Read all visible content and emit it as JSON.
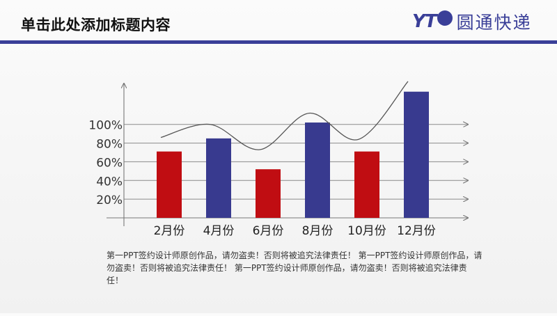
{
  "header": {
    "title": "单击此处添加标题内容",
    "logo_mark": "YT",
    "logo_text": "圆通快递",
    "brand_color": "#3a3f98"
  },
  "chart_data": {
    "type": "bar",
    "categories": [
      "2月份",
      "4月份",
      "6月份",
      "8月份",
      "10月份",
      "12月份"
    ],
    "values": [
      71,
      85,
      52,
      102,
      71,
      135
    ],
    "bar_colors": [
      "#c00d12",
      "#383a8f",
      "#c00d12",
      "#383a8f",
      "#c00d12",
      "#383a8f"
    ],
    "trend_line": [
      86,
      100,
      73,
      112,
      84,
      146
    ],
    "y_tick_labels": [
      {
        "value": 20,
        "label": "20%"
      },
      {
        "value": 40,
        "label": "40%"
      },
      {
        "value": 60,
        "label": "60%"
      },
      {
        "value": 80,
        "label": "80%"
      },
      {
        "value": 100,
        "label": "100%"
      }
    ],
    "ylim": [
      0,
      140
    ],
    "title": "",
    "xlabel": "",
    "ylabel": "",
    "grid": true,
    "legend": "none"
  },
  "footer": {
    "note": "第一PPT签约设计师原创作品，请勿盗卖！否则将被追究法律责任！ 第一PPT签约设计师原创作品，请勿盗卖！否则将被追究法律责任！ 第一PPT签约设计师原创作品，请勿盗卖！否则将被追究法律责任！"
  }
}
